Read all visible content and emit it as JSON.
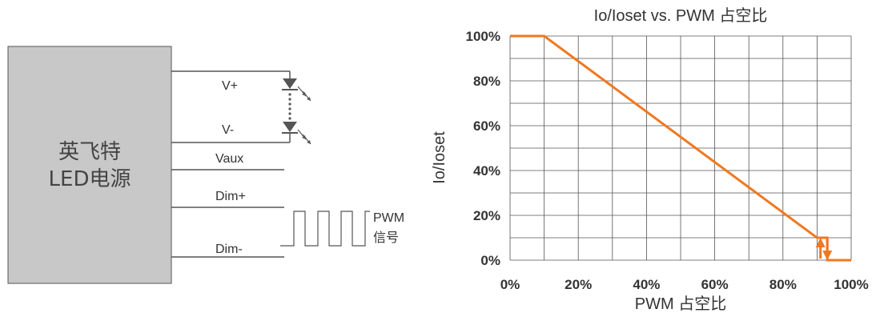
{
  "diagram": {
    "box_line1": "英飞特",
    "box_line2": "LED电源",
    "wires": {
      "vplus": "V+",
      "vminus": "V-",
      "vaux": "Vaux",
      "dimplus": "Dim+",
      "dimminus": "Dim-"
    },
    "pwm_line1": "PWM",
    "pwm_line2": "信号",
    "colors": {
      "box_fill": "#c8c8c8",
      "wire": "#555555"
    }
  },
  "chart_data": {
    "type": "line",
    "title": "Io/Ioset vs. PWM 占空比",
    "xlabel": "PWM 占空比",
    "ylabel": "Io/Ioset",
    "xlim": [
      0,
      100
    ],
    "ylim": [
      0,
      100
    ],
    "x_ticks": [
      0,
      20,
      40,
      60,
      80,
      100
    ],
    "y_ticks": [
      0,
      20,
      40,
      60,
      80,
      100
    ],
    "x_tick_labels": [
      "0%",
      "20%",
      "40%",
      "60%",
      "80%",
      "100%"
    ],
    "y_tick_labels": [
      "0%",
      "20%",
      "40%",
      "60%",
      "80%",
      "100%"
    ],
    "grid": true,
    "grid_step": 10,
    "series": [
      {
        "x": [
          0,
          10,
          90,
          93,
          93,
          100
        ],
        "y": [
          100,
          100,
          10,
          10,
          0,
          0
        ],
        "color": "#f07820"
      }
    ],
    "hysteresis": {
      "x_low": 91,
      "x_high": 93,
      "y_low": 0,
      "y_high": 10
    }
  }
}
